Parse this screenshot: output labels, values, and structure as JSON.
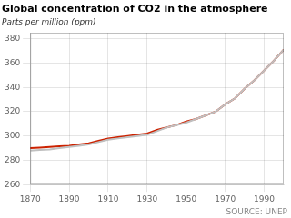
{
  "chart_data": {
    "type": "line",
    "title": "Global concentration of CO2 in the atmosphere",
    "subtitle": "Parts per million (ppm)",
    "annotations": [
      "SOURCE: UNEP"
    ],
    "x": [
      1870,
      1875,
      1880,
      1885,
      1890,
      1895,
      1900,
      1905,
      1910,
      1915,
      1920,
      1925,
      1930,
      1935,
      1940,
      1945,
      1950,
      1955,
      1960,
      1965,
      1970,
      1975,
      1980,
      1985,
      1990,
      1995,
      2000
    ],
    "series": [
      {
        "color": "#c0c0c0",
        "values": [
          288,
          288.5,
          289,
          290,
          291,
          292,
          293,
          295,
          297,
          298,
          299,
          300,
          301,
          304,
          307,
          309,
          311,
          314,
          317,
          320,
          326,
          331,
          339,
          346,
          354,
          362,
          371
        ]
      },
      {
        "color": "#cc2200",
        "values": [
          290,
          290.5,
          291,
          291.5,
          292,
          293,
          294,
          296,
          298,
          299,
          300,
          301,
          302,
          305,
          307,
          309,
          312,
          314,
          317,
          320,
          326,
          331,
          339,
          346,
          354,
          362,
          371
        ]
      }
    ],
    "xlim": [
      1870,
      2000
    ],
    "ylim": [
      260,
      385
    ],
    "xticks": [
      1870,
      1890,
      1910,
      1930,
      1950,
      1970,
      1990
    ],
    "yticks": [
      260,
      280,
      300,
      320,
      340,
      360,
      380
    ],
    "grid": true
  }
}
